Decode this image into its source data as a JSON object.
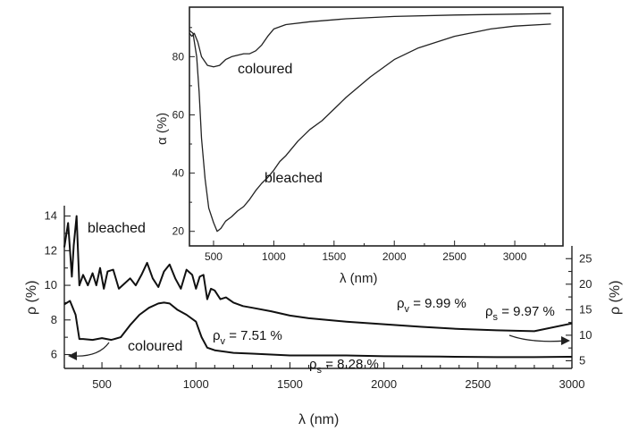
{
  "chart_data": [
    {
      "type": "line",
      "title": "",
      "xlabel": "λ (nm)",
      "ylabel": "ρ (%)",
      "ylabel_right": "ρ (%)",
      "xlim": [
        300,
        3000
      ],
      "ylim": [
        5.2,
        14.6
      ],
      "ylim_right": [
        3.5,
        27.5
      ],
      "x_ticks": [
        500,
        1000,
        1500,
        2000,
        2500,
        3000
      ],
      "y_ticks": [
        6,
        8,
        10,
        12,
        14
      ],
      "y_ticks_right": [
        5,
        10,
        15,
        20,
        25
      ],
      "series": [
        {
          "name": "bleached",
          "axis": "left",
          "x": [
            300,
            320,
            340,
            350,
            365,
            380,
            400,
            425,
            450,
            470,
            490,
            510,
            530,
            560,
            590,
            620,
            650,
            680,
            710,
            740,
            770,
            800,
            830,
            860,
            890,
            920,
            950,
            980,
            1000,
            1020,
            1040,
            1060,
            1080,
            1100,
            1130,
            1160,
            1200,
            1250,
            1300,
            1400,
            1500,
            1600,
            1800,
            2000,
            2200,
            2400,
            2600,
            2800,
            3000
          ],
          "y": [
            12.2,
            13.6,
            10.5,
            12.3,
            14.0,
            10.0,
            10.6,
            10.0,
            10.7,
            10.0,
            11.0,
            9.8,
            10.8,
            10.9,
            9.8,
            10.1,
            10.4,
            10.0,
            10.6,
            11.3,
            10.4,
            9.9,
            10.8,
            11.2,
            10.4,
            9.8,
            10.9,
            10.6,
            9.8,
            10.5,
            10.6,
            9.2,
            9.8,
            9.7,
            9.2,
            9.3,
            9.0,
            8.8,
            8.7,
            8.5,
            8.25,
            8.1,
            7.9,
            7.75,
            7.6,
            7.48,
            7.4,
            7.35,
            7.8
          ]
        },
        {
          "name": "coloured",
          "axis": "left",
          "x": [
            300,
            330,
            360,
            380,
            400,
            450,
            500,
            550,
            600,
            650,
            700,
            750,
            800,
            830,
            860,
            900,
            950,
            1000,
            1030,
            1060,
            1100,
            1200,
            1300,
            1500,
            1800,
            2000,
            2300,
            2600,
            2800,
            3000
          ],
          "y": [
            8.9,
            9.1,
            8.3,
            6.9,
            6.9,
            6.85,
            6.95,
            6.85,
            7.0,
            7.7,
            8.3,
            8.7,
            8.95,
            9.0,
            8.95,
            8.6,
            8.3,
            7.9,
            7.0,
            6.4,
            6.25,
            6.1,
            6.05,
            5.95,
            5.95,
            5.9,
            5.88,
            5.85,
            5.85,
            5.87
          ]
        }
      ],
      "annotations": [
        {
          "label": "bleached",
          "x": 610,
          "y": 12.2
        },
        {
          "label": "coloured",
          "x": 820,
          "y": 6.1
        },
        {
          "text": "ρ",
          "sub": "v",
          "suffix": " = 7.51 %",
          "x": 1160,
          "y": 7.1
        },
        {
          "text": "ρ",
          "sub": "s",
          "suffix": " = 8.28 %",
          "x": 1440,
          "y": 6.4
        },
        {
          "text": "ρ",
          "sub": "v",
          "suffix": " = 9.99 %",
          "x": 1970,
          "y": 8.9
        },
        {
          "text": "ρ",
          "sub": "s",
          "suffix": " = 9.97 %",
          "x": 2510,
          "y": 8.3
        }
      ],
      "grid": false,
      "legend": "none"
    },
    {
      "type": "line",
      "title": "",
      "xlabel": "λ (nm)",
      "ylabel": "α (%)",
      "xlim": [
        300,
        3400
      ],
      "ylim": [
        15,
        97
      ],
      "x_ticks": [
        500,
        1000,
        1500,
        2000,
        2500,
        3000
      ],
      "y_ticks": [
        20,
        40,
        60,
        80
      ],
      "series": [
        {
          "name": "coloured",
          "x": [
            300,
            320,
            340,
            370,
            400,
            450,
            500,
            550,
            600,
            650,
            700,
            750,
            800,
            850,
            900,
            950,
            1000,
            1100,
            1300,
            1600,
            2000,
            2500,
            3000,
            3300
          ],
          "y": [
            88,
            87,
            88,
            85,
            80,
            77,
            76.5,
            77,
            79,
            80,
            80.5,
            81,
            81,
            82,
            84,
            87,
            89.5,
            91,
            92,
            93,
            93.8,
            94.3,
            94.6,
            94.8
          ]
        },
        {
          "name": "bleached",
          "x": [
            300,
            330,
            360,
            380,
            400,
            430,
            460,
            500,
            530,
            560,
            600,
            650,
            700,
            750,
            800,
            850,
            900,
            950,
            1000,
            1050,
            1100,
            1200,
            1300,
            1400,
            1500,
            1600,
            1800,
            2000,
            2200,
            2500,
            2800,
            3000,
            3300
          ],
          "y": [
            89,
            88,
            80,
            68,
            52,
            38,
            28,
            23,
            20,
            21,
            23.5,
            25,
            27,
            28.5,
            31,
            34,
            36.5,
            38.5,
            41,
            44,
            46,
            51,
            55,
            58,
            62,
            66,
            73,
            79,
            83,
            87,
            89.5,
            90.5,
            91.2
          ]
        }
      ],
      "annotations": [
        {
          "label": "coloured",
          "x": 1020,
          "y": 78
        },
        {
          "label": "bleached",
          "x": 920,
          "y": 39
        }
      ],
      "grid": false,
      "legend": "none"
    }
  ]
}
